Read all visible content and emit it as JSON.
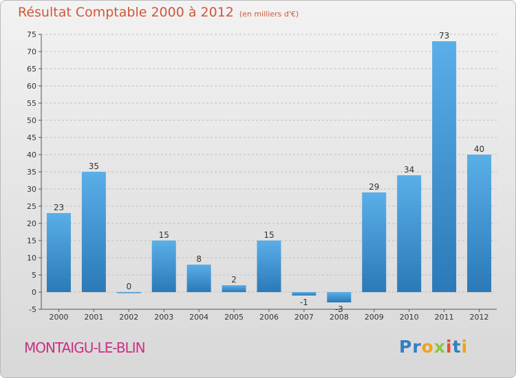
{
  "page": {
    "title": "Résultat Comptable 2000 à 2012",
    "subtitle": "(en milliers d'€)",
    "place": "MONTAIGU-LE-BLIN",
    "logo": {
      "letters": [
        "P",
        "r",
        "o",
        "x",
        "i",
        "t",
        "i"
      ]
    }
  },
  "colors": {
    "bar_top": "#5aafe8",
    "bar_bottom": "#2b79b8",
    "title": "#d0573a",
    "place": "#cc2f84",
    "logo": [
      "#2f7fc4",
      "#2f7fc4",
      "#f0a11a",
      "#8cc63f",
      "#e84a3a",
      "#2f7fc4",
      "#f0a11a"
    ]
  },
  "chart_data": {
    "type": "bar",
    "title": "Résultat Comptable 2000 à 2012",
    "subtitle": "(en milliers d'€)",
    "xlabel": "",
    "ylabel": "",
    "categories": [
      "2000",
      "2001",
      "2002",
      "2003",
      "2004",
      "2005",
      "2006",
      "2007",
      "2008",
      "2009",
      "2010",
      "2011",
      "2012"
    ],
    "values": [
      23,
      35,
      0,
      15,
      8,
      2,
      15,
      -1,
      -3,
      29,
      34,
      73,
      40
    ],
    "labels": [
      "23",
      "35",
      "0",
      "15",
      "8",
      "2",
      "15",
      "-1",
      "-3",
      "29",
      "34",
      "73",
      "40"
    ],
    "ylim": [
      -5,
      75
    ],
    "yticks": [
      -5,
      0,
      5,
      10,
      15,
      20,
      25,
      30,
      35,
      40,
      45,
      50,
      55,
      60,
      65,
      70,
      75
    ],
    "grid": true,
    "legend": "none"
  }
}
